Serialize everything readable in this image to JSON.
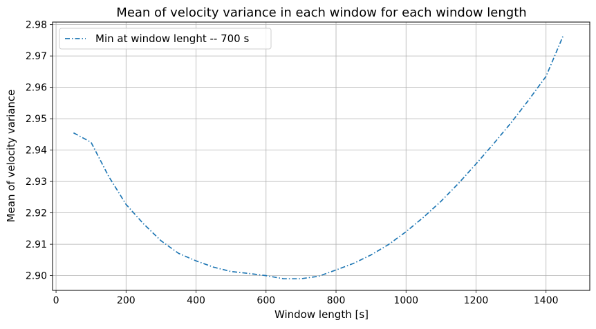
{
  "chart_data": {
    "type": "line",
    "title": "Mean of velocity variance in each window for each window length",
    "xlabel": "Window length [s]",
    "ylabel": "Mean of velocity variance",
    "xlim": [
      -10,
      1525
    ],
    "ylim": [
      2.8953,
      2.9808
    ],
    "x_ticks": [
      0,
      200,
      400,
      600,
      800,
      1000,
      1200,
      1400
    ],
    "y_ticks": [
      2.9,
      2.91,
      2.92,
      2.93,
      2.94,
      2.95,
      2.96,
      2.97,
      2.98
    ],
    "y_tick_labels": [
      "2.90",
      "2.91",
      "2.92",
      "2.93",
      "2.94",
      "2.95",
      "2.96",
      "2.97",
      "2.98"
    ],
    "grid": true,
    "legend_position": "top-left",
    "line_style": "dashdot",
    "series": [
      {
        "name": "Min at window lenght -- 700 s",
        "color": "#1f77b4",
        "x": [
          50,
          100,
          150,
          200,
          250,
          300,
          350,
          400,
          450,
          500,
          550,
          600,
          650,
          700,
          750,
          800,
          850,
          900,
          950,
          1000,
          1050,
          1100,
          1150,
          1200,
          1250,
          1300,
          1350,
          1400,
          1450
        ],
        "y": [
          2.9455,
          2.9425,
          2.9317,
          2.9227,
          2.9165,
          2.9111,
          2.9071,
          2.9047,
          2.9027,
          2.9013,
          2.9007,
          2.9,
          2.899,
          2.899,
          2.8998,
          2.9018,
          2.9039,
          2.9066,
          2.9099,
          2.914,
          2.9186,
          2.9237,
          2.9294,
          2.9356,
          2.942,
          2.9487,
          2.9559,
          2.9635,
          2.9767
        ]
      }
    ]
  }
}
